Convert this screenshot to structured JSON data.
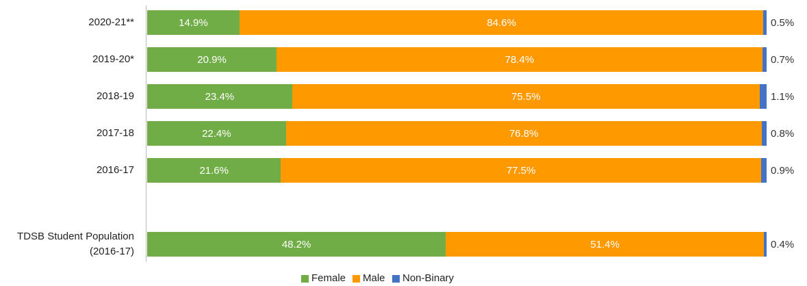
{
  "chart_data": {
    "type": "stacked-barh",
    "categories": [
      "2020-21**",
      "2019-20*",
      "2018-19",
      "2017-18",
      "2016-17",
      null,
      "TDSB Student Population (2016-17)"
    ],
    "series": [
      {
        "name": "Female",
        "color": "#70ad47",
        "values": [
          14.9,
          20.9,
          23.4,
          22.4,
          21.6,
          null,
          48.2
        ],
        "value_labels": [
          "14.9%",
          "20.9%",
          "23.4%",
          "22.4%",
          "21.6%",
          null,
          "48.2%"
        ]
      },
      {
        "name": "Male",
        "color": "#ff9900",
        "values": [
          84.6,
          78.4,
          75.5,
          76.8,
          77.5,
          null,
          51.4
        ],
        "value_labels": [
          "84.6%",
          "78.4%",
          "75.5%",
          "76.8%",
          "77.5%",
          null,
          "51.4%"
        ]
      },
      {
        "name": "Non-Binary",
        "color": "#4472c4",
        "values": [
          0.5,
          0.7,
          1.1,
          0.8,
          0.9,
          null,
          0.4
        ],
        "value_labels": [
          "0.5%",
          "0.7%",
          "1.1%",
          "0.8%",
          "0.9%",
          null,
          "0.4%"
        ]
      }
    ],
    "xlim": [
      0,
      100
    ],
    "legend": "bottom"
  }
}
